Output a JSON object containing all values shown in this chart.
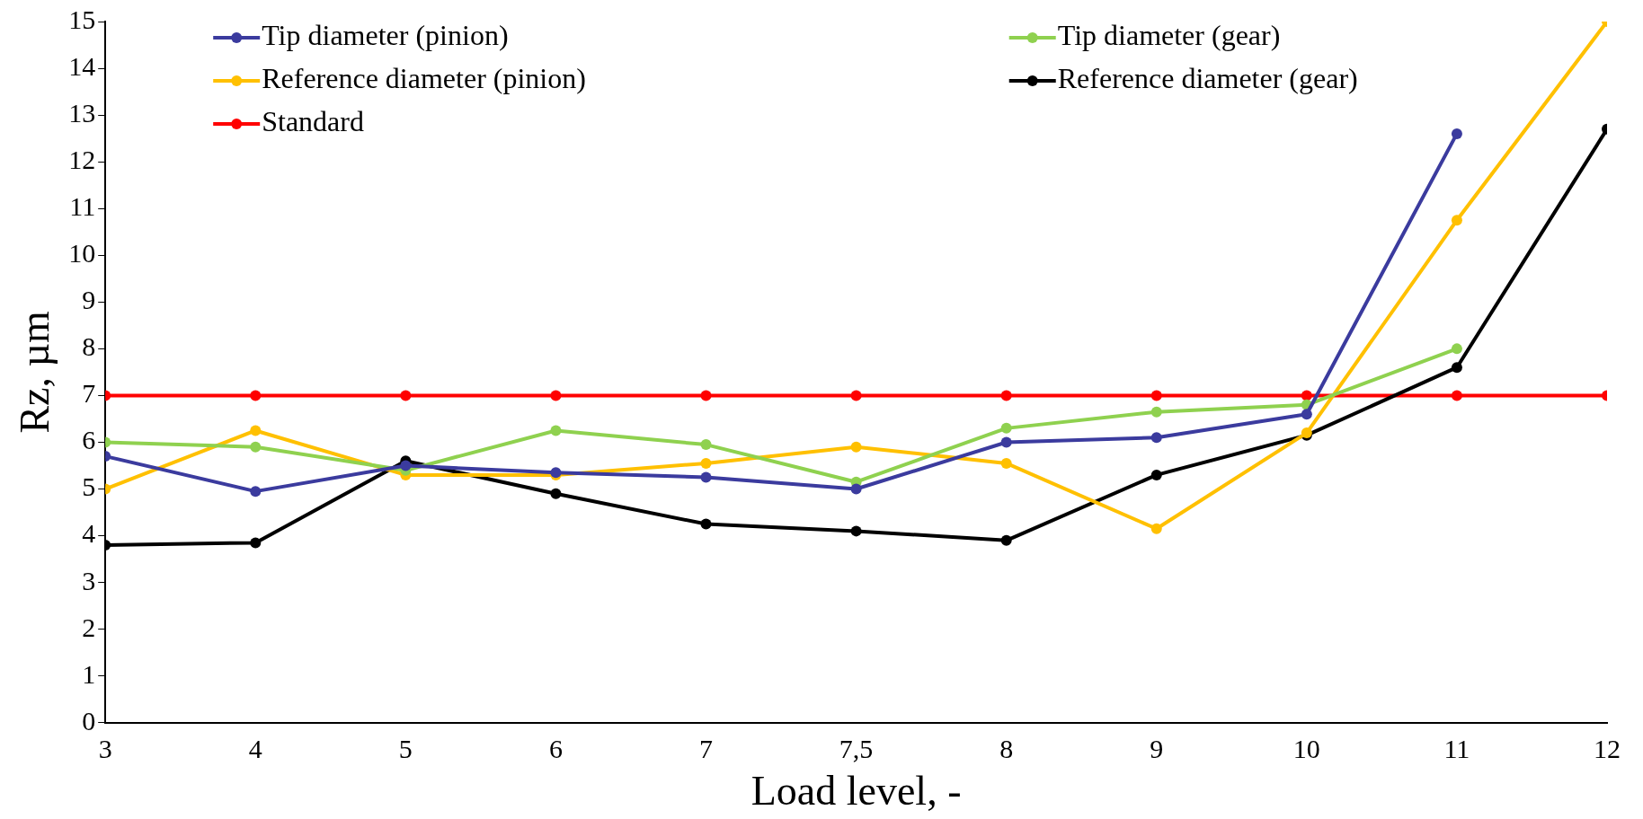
{
  "chart_data": {
    "type": "line",
    "xlabel": "Load level, -",
    "ylabel": "Rz, µm",
    "categories": [
      "3",
      "4",
      "5",
      "6",
      "7",
      "7,5",
      "8",
      "9",
      "10",
      "11",
      "12"
    ],
    "ylim": [
      0,
      15
    ],
    "yticks": [
      0,
      1,
      2,
      3,
      4,
      5,
      6,
      7,
      8,
      9,
      10,
      11,
      12,
      13,
      14,
      15
    ],
    "grid": false,
    "legend": "top",
    "marker": "circle",
    "line_style": "solid",
    "series": [
      {
        "name": "Tip diameter (pinion)",
        "color": "#3b3b9e",
        "values": [
          5.7,
          4.95,
          5.5,
          5.35,
          5.25,
          5.0,
          6.0,
          6.1,
          6.6,
          12.6,
          null
        ]
      },
      {
        "name": "Tip diameter (gear)",
        "color": "#8fd14f",
        "values": [
          6.0,
          5.9,
          5.4,
          6.25,
          5.95,
          5.15,
          6.3,
          6.65,
          6.8,
          8.0,
          null
        ]
      },
      {
        "name": "Reference diameter (pinion)",
        "color": "#ffc000",
        "values": [
          5.0,
          6.25,
          5.3,
          5.3,
          5.55,
          5.9,
          5.55,
          4.15,
          6.2,
          10.75,
          15
        ]
      },
      {
        "name": "Reference diameter (gear)",
        "color": "#000000",
        "values": [
          3.8,
          3.85,
          5.6,
          4.9,
          4.25,
          4.1,
          3.9,
          5.3,
          6.15,
          7.6,
          12.7
        ]
      },
      {
        "name": "Standard",
        "color": "#ff0000",
        "values": [
          7,
          7,
          7,
          7,
          7,
          7,
          7,
          7,
          7,
          7,
          7
        ]
      }
    ]
  }
}
